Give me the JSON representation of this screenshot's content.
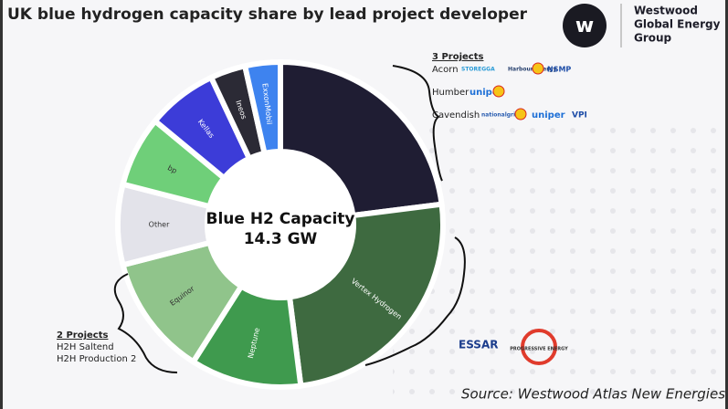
{
  "chart_data": {
    "type": "donut",
    "title": "UK blue hydrogen capacity share by lead project developer",
    "center_label": [
      "Blue H2 Capacity",
      "14.3 GW"
    ],
    "categories": [
      null,
      "Vertex Hydrogen",
      "Neptune",
      "Equinor",
      "Other",
      "bp",
      "Kellas",
      "Ineos",
      "ExxonMobil"
    ],
    "values": [
      23,
      25,
      11,
      12,
      8,
      7,
      7,
      3.5,
      3.5
    ],
    "colors": [
      "#1f1d33",
      "#3e6a40",
      "#3f9a4e",
      "#90c48b",
      "#e3e3ea",
      "#6fcf79",
      "#3c3cd8",
      "#2b2a35",
      "#3e83ef"
    ],
    "source": "Source: Westwood Atlas New Energies"
  },
  "brand": [
    "Westwood",
    "Global Energy",
    "Group"
  ],
  "annotations": {
    "group_1": {
      "heading": "3 Projects",
      "items": [
        "Acorn",
        "Humber",
        "Cavendish"
      ]
    },
    "group_2": {
      "heading": "2 Projects",
      "items": [
        "H2H Saltend",
        "H2H Production 2"
      ]
    },
    "logos": [
      "STOREGGA",
      "Harbour Energy",
      "NSMP",
      "uniper",
      "nationalgrid",
      "uniper",
      "VPI",
      "ESSAR",
      "PROGRESSIVE ENERGY"
    ]
  }
}
